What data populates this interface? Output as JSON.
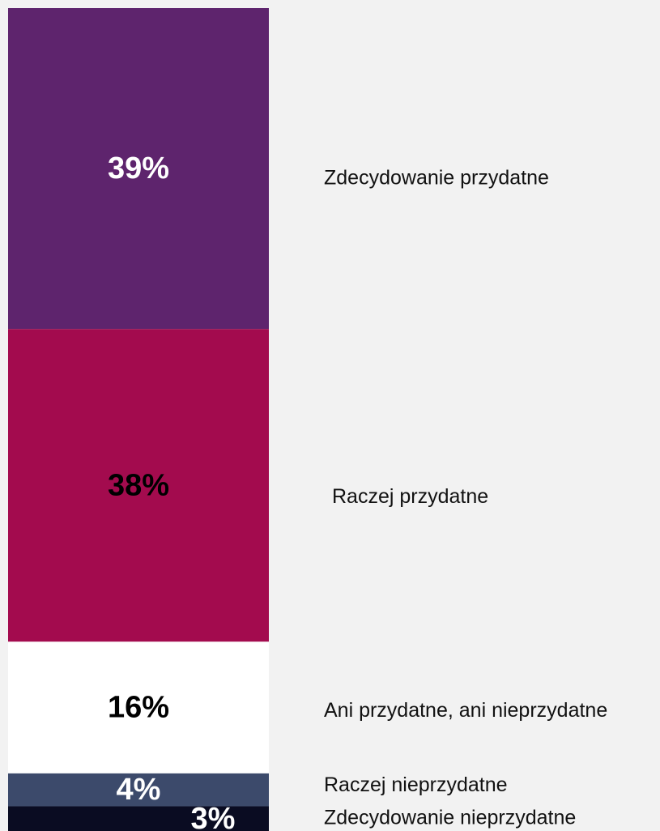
{
  "chart_data": {
    "type": "stacked_bar",
    "series": [
      {
        "name": "Zdecydowanie przydatne",
        "color": "#5e246d",
        "label_color": "#ffffff",
        "values": [
          39
        ],
        "value_labels": [
          "39%"
        ]
      },
      {
        "name": "Raczej przydatne",
        "color": "#a30b4e",
        "label_color": "#000000",
        "values": [
          38
        ],
        "value_labels": [
          "38%"
        ]
      },
      {
        "name": "Ani przydatne, ani nieprzydatne",
        "color": "#ffffff",
        "label_color": "#000000",
        "values": [
          16
        ],
        "value_labels": [
          "16%"
        ]
      },
      {
        "name": "Raczej nieprzydatne",
        "color": "#3c4a6b",
        "label_color": "#ffffff",
        "values": [
          4
        ],
        "value_labels": [
          "4%"
        ]
      },
      {
        "name": "Zdecydowanie nieprzydatne",
        "color": "#0a0c22",
        "label_color": "#ffffff",
        "values": [
          3
        ],
        "value_labels": [
          "3%"
        ]
      }
    ]
  }
}
